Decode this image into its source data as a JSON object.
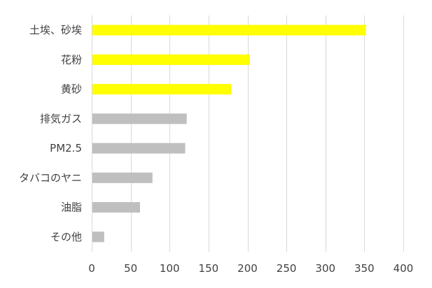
{
  "chart_data": {
    "type": "bar",
    "orientation": "horizontal",
    "categories": [
      "土埃、砂埃",
      "花粉",
      "黄砂",
      "排気ガス",
      "PM2.5",
      "タバコのヤニ",
      "油脂",
      "その他"
    ],
    "values": [
      352,
      203,
      179,
      122,
      120,
      78,
      62,
      16
    ],
    "bar_colors": [
      "#FFFF00",
      "#FFFF00",
      "#FFFF00",
      "#BFBFBF",
      "#BFBFBF",
      "#BFBFBF",
      "#BFBFBF",
      "#BFBFBF"
    ],
    "xlim": [
      0,
      400
    ],
    "xticks": [
      0,
      50,
      100,
      150,
      200,
      250,
      300,
      350,
      400
    ],
    "grid": true,
    "title": "",
    "xlabel": "",
    "ylabel": ""
  },
  "colors": {
    "highlight": "#FFFF00",
    "default_bar": "#BFBFBF",
    "gridline": "#D9D9D9",
    "text": "#404040"
  }
}
